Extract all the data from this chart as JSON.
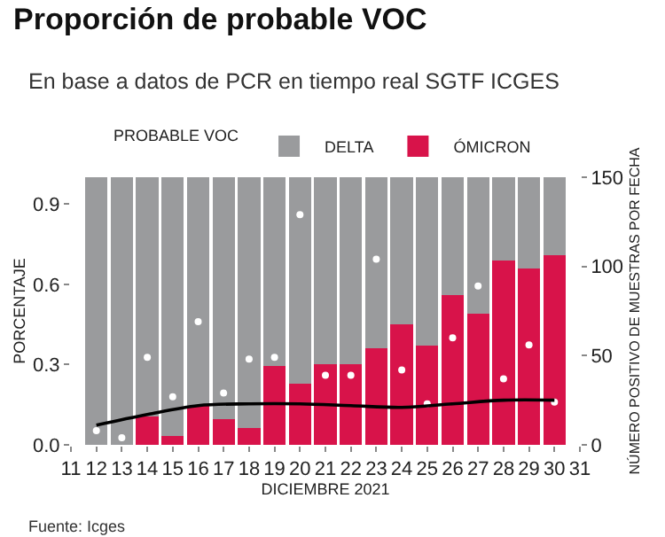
{
  "chart_data": {
    "type": "bar",
    "title": "Proporción de probable VOC",
    "subtitle": "En base a datos de PCR en tiempo real SGTF ICGES",
    "xlabel": "DICIEMBRE 2021",
    "ylabel": "PORCENTAJE",
    "y2label": "NÚMERO POSITIVO DE MUESTRAS POR FECHA",
    "legend_title": "PROBABLE VOC",
    "annotations": [
      "Fuente: Icges"
    ],
    "x": [
      12,
      13,
      14,
      15,
      16,
      17,
      18,
      19,
      20,
      21,
      22,
      23,
      24,
      25,
      26,
      27,
      28,
      29,
      30
    ],
    "stacked": true,
    "series": [
      {
        "name": "ÓMICRON",
        "color": "#d8134a",
        "values": [
          0,
          0,
          0.105,
          0.033,
          0.145,
          0.096,
          0.062,
          0.295,
          0.23,
          0.3,
          0.3,
          0.36,
          0.45,
          0.37,
          0.56,
          0.49,
          0.69,
          0.66,
          0.71
        ]
      },
      {
        "name": "DELTA",
        "color": "#9a9b9d",
        "values": [
          1,
          1,
          0.895,
          0.967,
          0.855,
          0.904,
          0.938,
          0.705,
          0.77,
          0.7,
          0.7,
          0.64,
          0.55,
          0.63,
          0.44,
          0.51,
          0.31,
          0.34,
          0.29
        ]
      },
      {
        "type": "scatter",
        "axis": "y2",
        "color": "#ffffff",
        "marker": "circle",
        "values": [
          8,
          4,
          49,
          27,
          69,
          29,
          48,
          49,
          129,
          39,
          39,
          104,
          42,
          23,
          60,
          89,
          37,
          56,
          24
        ]
      },
      {
        "type": "line",
        "axis": "y2",
        "color": "#000000",
        "line_style": "solid",
        "x": [
          12,
          14,
          16,
          18,
          20,
          22,
          24,
          26,
          28,
          30
        ],
        "values": [
          11,
          17,
          22,
          23,
          23,
          22,
          21,
          23,
          25,
          25
        ]
      }
    ],
    "xlim": [
      11,
      31
    ],
    "xticks": [
      11,
      12,
      13,
      14,
      15,
      16,
      17,
      18,
      19,
      20,
      21,
      22,
      23,
      24,
      25,
      26,
      27,
      28,
      29,
      30,
      31
    ],
    "ylim": [
      0,
      1
    ],
    "yticks": [
      {
        "value": 0,
        "label": "0.0"
      },
      {
        "value": 0.3,
        "label": "0.3"
      },
      {
        "value": 0.6,
        "label": "0.6"
      },
      {
        "value": 0.9,
        "label": "0.9"
      }
    ],
    "y2lim": [
      0,
      150
    ],
    "y2ticks": [
      0,
      50,
      100,
      150
    ],
    "grid": false,
    "legend": "top"
  }
}
